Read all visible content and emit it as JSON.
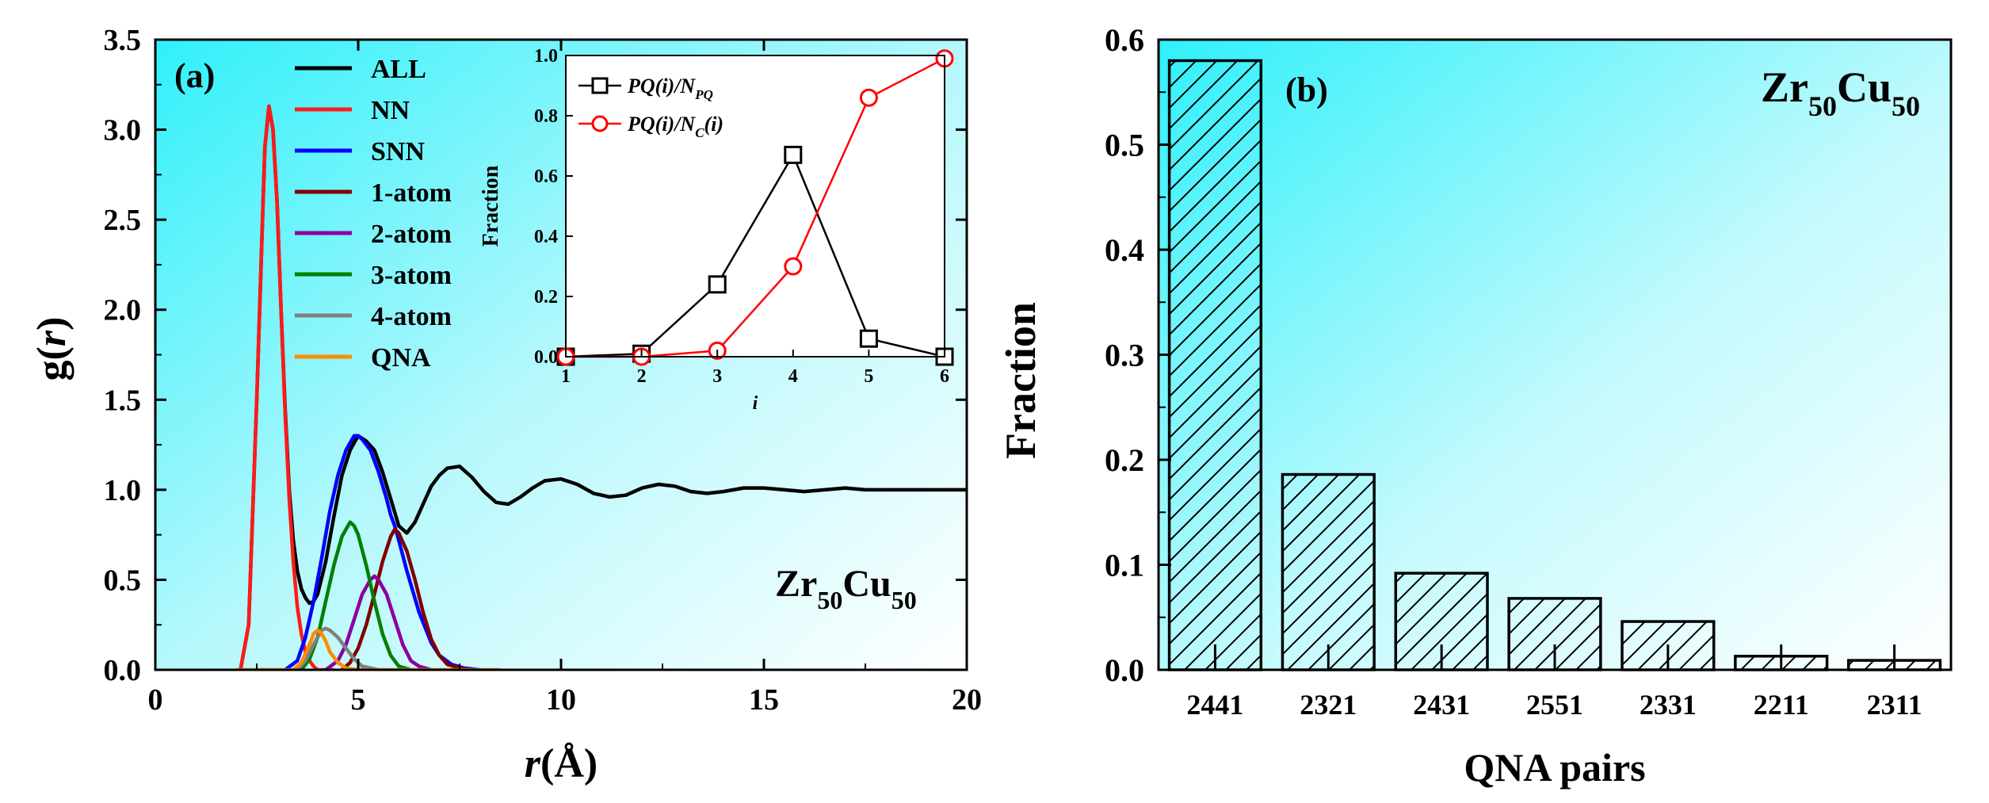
{
  "chart_data": [
    {
      "type": "line",
      "panel_label": "(a)",
      "title": "",
      "xlabel": "r(Å)",
      "xlabel_parts": {
        "italic": "r",
        "rest": "(Å)"
      },
      "ylabel": "g(r)",
      "ylabel_parts": {
        "prefix": "g(",
        "italic": "r",
        "suffix": ")"
      },
      "xlim": [
        0,
        20
      ],
      "ylim": [
        0,
        3.5
      ],
      "x_ticks": [
        0,
        5,
        10,
        15,
        20
      ],
      "x_tick_labels": [
        "0",
        "5",
        "10",
        "15",
        "20"
      ],
      "y_ticks": [
        0,
        0.5,
        1.0,
        1.5,
        2.0,
        2.5,
        3.0,
        3.5
      ],
      "y_tick_labels": [
        "0.0",
        "0.5",
        "1.0",
        "1.5",
        "2.0",
        "2.5",
        "3.0",
        "3.5"
      ],
      "annotation": {
        "base1": "Zr",
        "sub1": "50",
        "base2": "Cu",
        "sub2": "50"
      },
      "legend_position": "top-left",
      "series": [
        {
          "name": "ALL",
          "color": "#000000",
          "x": [
            2.1,
            2.3,
            2.5,
            2.7,
            2.8,
            2.9,
            3.0,
            3.1,
            3.2,
            3.3,
            3.4,
            3.5,
            3.6,
            3.7,
            3.8,
            3.9,
            4.0,
            4.2,
            4.4,
            4.6,
            4.8,
            5.0,
            5.2,
            5.4,
            5.6,
            5.8,
            6.0,
            6.2,
            6.4,
            6.6,
            6.8,
            7.0,
            7.2,
            7.5,
            7.8,
            8.1,
            8.4,
            8.7,
            9.0,
            9.3,
            9.6,
            10.0,
            10.4,
            10.8,
            11.2,
            11.6,
            12.0,
            12.4,
            12.8,
            13.2,
            13.6,
            14.0,
            14.5,
            15.0,
            15.5,
            16.0,
            16.5,
            17.0,
            17.5,
            18.0,
            18.5,
            19.0,
            19.5,
            20.0
          ],
          "y": [
            0.0,
            0.25,
            1.5,
            2.9,
            3.13,
            3.0,
            2.6,
            2.0,
            1.45,
            1.0,
            0.72,
            0.55,
            0.45,
            0.4,
            0.37,
            0.38,
            0.42,
            0.6,
            0.85,
            1.08,
            1.22,
            1.3,
            1.27,
            1.22,
            1.1,
            0.95,
            0.8,
            0.76,
            0.82,
            0.92,
            1.02,
            1.08,
            1.12,
            1.13,
            1.07,
            0.99,
            0.93,
            0.92,
            0.96,
            1.01,
            1.05,
            1.06,
            1.03,
            0.98,
            0.96,
            0.97,
            1.01,
            1.03,
            1.02,
            0.99,
            0.98,
            0.99,
            1.01,
            1.01,
            1.0,
            0.99,
            1.0,
            1.01,
            1.0,
            1.0,
            1.0,
            1.0,
            1.0,
            1.0
          ]
        },
        {
          "name": "NN",
          "color": "#ff1a1a",
          "x": [
            2.1,
            2.3,
            2.5,
            2.7,
            2.8,
            2.9,
            3.0,
            3.1,
            3.2,
            3.3,
            3.4,
            3.5,
            3.6,
            3.7,
            3.8,
            3.9,
            4.0,
            4.2,
            4.4
          ],
          "y": [
            0.0,
            0.25,
            1.5,
            2.9,
            3.13,
            3.0,
            2.6,
            2.0,
            1.42,
            0.95,
            0.6,
            0.35,
            0.2,
            0.1,
            0.05,
            0.02,
            0.0,
            0.0,
            0.0
          ]
        },
        {
          "name": "SNN",
          "color": "#0000ff",
          "x": [
            3.2,
            3.5,
            3.7,
            3.9,
            4.1,
            4.3,
            4.5,
            4.7,
            4.9,
            5.0,
            5.1,
            5.3,
            5.5,
            5.7,
            5.8,
            5.9,
            6.0,
            6.2,
            6.5,
            6.8,
            7.0,
            7.3,
            7.6,
            8.0
          ],
          "y": [
            0.0,
            0.05,
            0.18,
            0.38,
            0.62,
            0.88,
            1.08,
            1.22,
            1.3,
            1.3,
            1.28,
            1.22,
            1.1,
            0.95,
            0.86,
            0.8,
            0.72,
            0.55,
            0.32,
            0.15,
            0.08,
            0.03,
            0.01,
            0.0
          ]
        },
        {
          "name": "1-atom",
          "color": "#800000",
          "x": [
            4.6,
            4.8,
            5.0,
            5.2,
            5.4,
            5.6,
            5.8,
            5.9,
            6.0,
            6.2,
            6.4,
            6.6,
            6.8,
            7.0,
            7.2,
            7.5,
            7.8
          ],
          "y": [
            0.0,
            0.04,
            0.12,
            0.25,
            0.42,
            0.6,
            0.74,
            0.78,
            0.76,
            0.66,
            0.5,
            0.32,
            0.17,
            0.08,
            0.03,
            0.01,
            0.0
          ]
        },
        {
          "name": "2-atom",
          "color": "#8b00a0",
          "x": [
            4.2,
            4.5,
            4.7,
            4.9,
            5.1,
            5.3,
            5.4,
            5.5,
            5.7,
            5.9,
            6.1,
            6.3,
            6.5,
            6.8
          ],
          "y": [
            0.0,
            0.05,
            0.14,
            0.28,
            0.42,
            0.5,
            0.52,
            0.5,
            0.42,
            0.28,
            0.14,
            0.05,
            0.02,
            0.0
          ]
        },
        {
          "name": "3-atom",
          "color": "#008000",
          "x": [
            3.6,
            3.8,
            4.0,
            4.2,
            4.4,
            4.6,
            4.8,
            4.9,
            5.0,
            5.2,
            5.4,
            5.6,
            5.8,
            6.0,
            6.3
          ],
          "y": [
            0.0,
            0.06,
            0.18,
            0.38,
            0.58,
            0.74,
            0.82,
            0.8,
            0.75,
            0.58,
            0.38,
            0.2,
            0.08,
            0.02,
            0.0
          ]
        },
        {
          "name": "4-atom",
          "color": "#808080",
          "x": [
            3.5,
            3.7,
            3.9,
            4.1,
            4.2,
            4.3,
            4.5,
            4.7,
            4.9,
            5.1,
            5.3,
            5.5
          ],
          "y": [
            0.0,
            0.05,
            0.14,
            0.22,
            0.23,
            0.22,
            0.18,
            0.12,
            0.06,
            0.02,
            0.01,
            0.0
          ]
        },
        {
          "name": "QNA",
          "color": "#ff8c00",
          "x": [
            2.0,
            3.4,
            3.6,
            3.8,
            3.9,
            4.0,
            4.1,
            4.2,
            4.3,
            4.5,
            4.7,
            5.0,
            6.0,
            7.0,
            8.5
          ],
          "y": [
            0.0,
            0.0,
            0.04,
            0.14,
            0.2,
            0.22,
            0.2,
            0.16,
            0.1,
            0.04,
            0.01,
            0.0,
            0.0,
            0.0,
            0.0
          ]
        }
      ]
    },
    {
      "type": "line",
      "inset_of": "(a)",
      "xlabel": "i",
      "ylabel": "Fraction",
      "xlim": [
        1,
        6
      ],
      "ylim": [
        0,
        1.0
      ],
      "x_ticks": [
        1,
        2,
        3,
        4,
        5,
        6
      ],
      "x_tick_labels": [
        "1",
        "2",
        "3",
        "4",
        "5",
        "6"
      ],
      "y_ticks": [
        0,
        0.2,
        0.4,
        0.6,
        0.8,
        1.0
      ],
      "y_tick_labels": [
        "0.0",
        "0.2",
        "0.4",
        "0.6",
        "0.8",
        "1.0"
      ],
      "legend_position": "top-left",
      "series": [
        {
          "name": "PQ(i)/N_PQ",
          "color": "#000000",
          "marker": "square",
          "legend_parts": {
            "main": "PQ(i)/N",
            "sub": "PQ",
            "tail": ""
          },
          "x": [
            1,
            2,
            3,
            4,
            5,
            6
          ],
          "y": [
            0.0,
            0.01,
            0.24,
            0.67,
            0.06,
            0.0
          ]
        },
        {
          "name": "PQ(i)/N_C(i)",
          "color": "#ff0000",
          "marker": "circle",
          "legend_parts": {
            "main": "PQ(i)/N",
            "sub": "C",
            "tail": "(i)"
          },
          "x": [
            1,
            2,
            3,
            4,
            5,
            6
          ],
          "y": [
            0.0,
            0.0,
            0.02,
            0.3,
            0.86,
            0.99
          ]
        }
      ]
    },
    {
      "type": "bar",
      "panel_label": "(b)",
      "title": "",
      "xlabel": "QNA pairs",
      "ylabel": "Fraction",
      "categories": [
        "2441",
        "2321",
        "2431",
        "2551",
        "2331",
        "2211",
        "2311"
      ],
      "values": [
        0.58,
        0.186,
        0.092,
        0.068,
        0.046,
        0.013,
        0.009
      ],
      "ylim": [
        0,
        0.6
      ],
      "y_ticks": [
        0,
        0.1,
        0.2,
        0.3,
        0.4,
        0.5,
        0.6
      ],
      "y_tick_labels": [
        "0.0",
        "0.1",
        "0.2",
        "0.3",
        "0.4",
        "0.5",
        "0.6"
      ],
      "annotation": {
        "base1": "Zr",
        "sub1": "50",
        "base2": "Cu",
        "sub2": "50"
      }
    }
  ]
}
